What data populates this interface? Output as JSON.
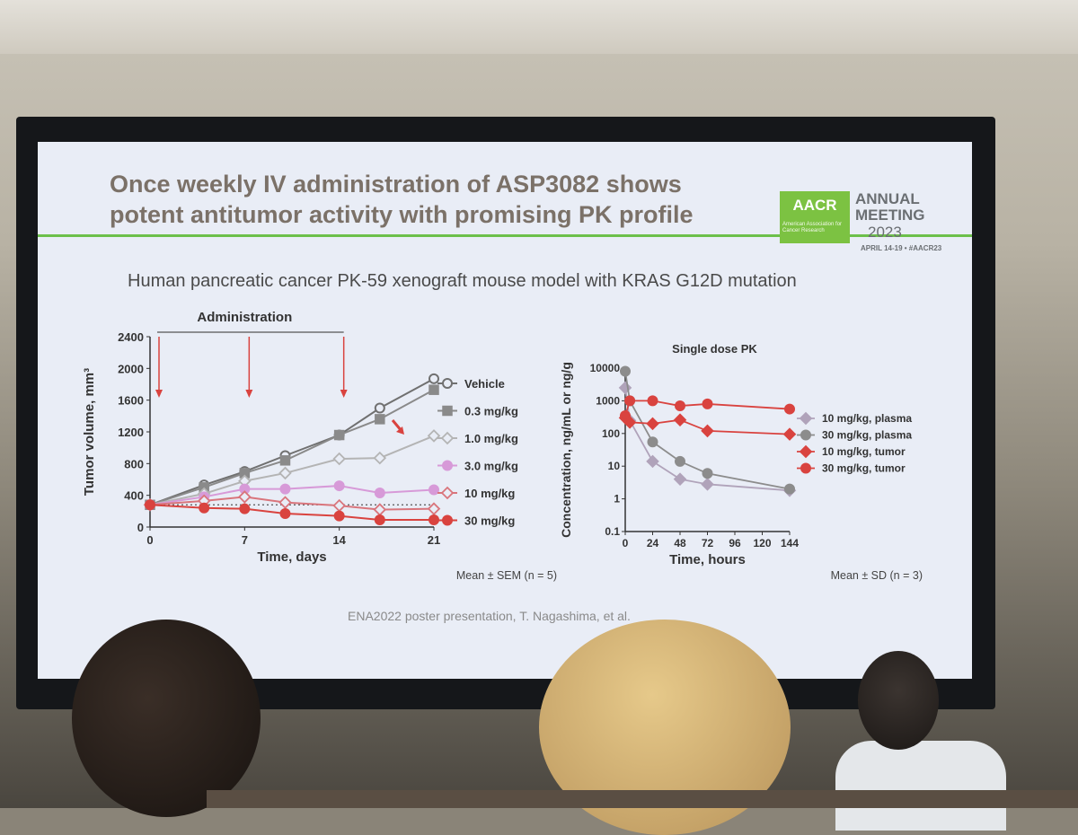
{
  "slide": {
    "title_line1": "Once weekly IV administration of ASP3082 shows",
    "title_line2": "potent antitumor activity with promising PK profile",
    "subtitle": "Human pancreatic cancer PK-59 xenograft mouse model with KRAS G12D mutation",
    "footer": "ENA2022 poster presentation, T. Nagashima, et al.",
    "logo": {
      "mark": "AACR",
      "org": "American Association for Cancer Research",
      "line1": "ANNUAL",
      "line2": "MEETING",
      "year": "2023",
      "dates": "APRIL 14-19 • #AACR23"
    }
  },
  "colors": {
    "title": "#7b7168",
    "accent_green": "#6cc04a",
    "arrow_red": "#d9433f"
  },
  "chart_data": [
    {
      "type": "line",
      "title": "",
      "header": "Administration",
      "xlabel": "Time, days",
      "ylabel": "Tumor volume, mm³",
      "xlim": [
        0,
        21
      ],
      "ylim": [
        0,
        2400
      ],
      "xticks": [
        0,
        7,
        14,
        21
      ],
      "yticks": [
        0,
        400,
        800,
        1200,
        1600,
        2000,
        2400
      ],
      "dosing_days": [
        0,
        7,
        14
      ],
      "footnote": "Mean ± SEM (n = 5)",
      "legend_position": "right",
      "series": [
        {
          "name": "Vehicle",
          "color": "#707070",
          "marker": "circle-open",
          "x": [
            0,
            4,
            7,
            10,
            14,
            17,
            21
          ],
          "y": [
            280,
            530,
            700,
            900,
            1160,
            1500,
            1870
          ]
        },
        {
          "name": "0.3 mg/kg",
          "color": "#8a8a8a",
          "marker": "square-filled",
          "x": [
            0,
            4,
            7,
            10,
            14,
            17,
            21
          ],
          "y": [
            280,
            500,
            680,
            840,
            1160,
            1360,
            1730
          ]
        },
        {
          "name": "1.0 mg/kg",
          "color": "#b4b4b4",
          "marker": "diamond-open",
          "x": [
            0,
            4,
            7,
            10,
            14,
            17,
            21
          ],
          "y": [
            280,
            420,
            580,
            680,
            860,
            870,
            1150
          ]
        },
        {
          "name": "3.0 mg/kg",
          "color": "#d79ad8",
          "marker": "circle-filled",
          "x": [
            0,
            4,
            7,
            10,
            14,
            17,
            21
          ],
          "y": [
            280,
            380,
            480,
            480,
            520,
            430,
            470
          ]
        },
        {
          "name": "10 mg/kg",
          "color": "#d9757c",
          "marker": "diamond-open",
          "x": [
            0,
            4,
            7,
            10,
            14,
            17,
            21
          ],
          "y": [
            280,
            330,
            380,
            310,
            270,
            220,
            230
          ]
        },
        {
          "name": "30 mg/kg",
          "color": "#d9433f",
          "marker": "circle-filled",
          "x": [
            0,
            4,
            7,
            10,
            14,
            17,
            21
          ],
          "y": [
            280,
            240,
            230,
            170,
            140,
            90,
            90
          ]
        }
      ]
    },
    {
      "type": "line",
      "title": "Single dose PK",
      "xlabel": "Time, hours",
      "ylabel": "Concentration, ng/mL or ng/g",
      "xlim": [
        0,
        144
      ],
      "ylim": [
        0.1,
        10000
      ],
      "yscale": "log",
      "xticks": [
        0,
        24,
        48,
        72,
        96,
        120,
        144
      ],
      "yticks": [
        0.1,
        1,
        10,
        100,
        1000,
        10000
      ],
      "footnote": "Mean ± SD (n = 3)",
      "legend_position": "right",
      "series": [
        {
          "name": "10 mg/kg, plasma",
          "color": "#b0a3ba",
          "marker": "diamond-filled",
          "x": [
            0,
            4,
            24,
            48,
            72,
            144
          ],
          "y": [
            2500,
            250,
            14,
            4,
            2.8,
            1.8
          ]
        },
        {
          "name": "30 mg/kg, plasma",
          "color": "#8c8c8c",
          "marker": "circle-filled",
          "x": [
            0,
            4,
            24,
            48,
            72,
            144
          ],
          "y": [
            8000,
            1000,
            55,
            14,
            6,
            2
          ]
        },
        {
          "name": "10 mg/kg, tumor",
          "color": "#d9433f",
          "marker": "diamond-filled",
          "x": [
            0,
            4,
            24,
            48,
            72,
            144
          ],
          "y": [
            300,
            220,
            200,
            260,
            120,
            95
          ]
        },
        {
          "name": "30 mg/kg, tumor",
          "color": "#d9433f",
          "marker": "circle-filled",
          "x": [
            0,
            4,
            24,
            48,
            72,
            144
          ],
          "y": [
            350,
            1000,
            1000,
            700,
            800,
            560
          ]
        }
      ]
    }
  ]
}
